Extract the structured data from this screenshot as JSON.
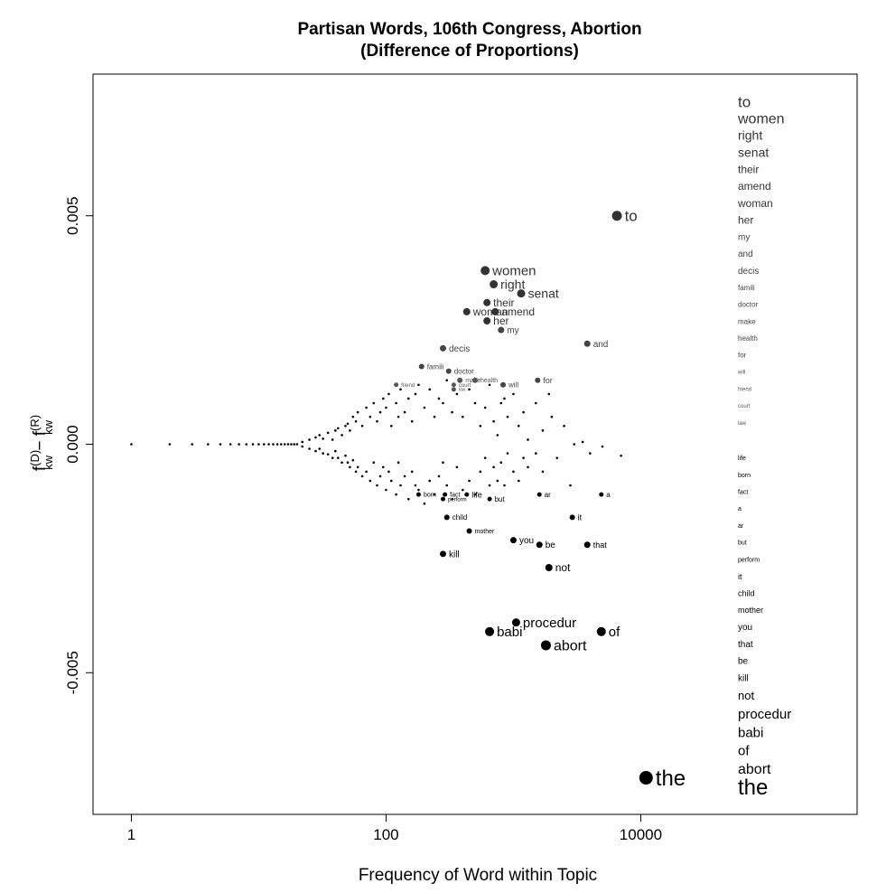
{
  "chart_data": {
    "type": "scatter",
    "title": "Partisan Words, 106th Congress, Abortion",
    "subtitle": "(Difference of Proportions)",
    "xlabel": "Frequency of Word within Topic",
    "ylabel": {
      "base": "f",
      "sup1": "(D)",
      "sub": "kw",
      "minus": " − ",
      "sup2": "(R)"
    },
    "x_scale": "log",
    "x_ticks": [
      {
        "value": 1,
        "label": "1"
      },
      {
        "value": 100,
        "label": "100"
      },
      {
        "value": 10000,
        "label": "10000"
      }
    ],
    "y_ticks": [
      {
        "value": -0.005,
        "label": "-0.005"
      },
      {
        "value": 0,
        "label": "0.000"
      },
      {
        "value": 0.005,
        "label": "0.005"
      }
    ],
    "xlim": [
      0.5,
      500000
    ],
    "ylim": [
      -0.0081,
      0.0081
    ],
    "grid": false,
    "labeled_points": [
      {
        "word": "to",
        "x": 6500,
        "y": 0.005,
        "size": 5.5,
        "fs": 17,
        "color": "#333333"
      },
      {
        "word": "women",
        "x": 600,
        "y": 0.0038,
        "size": 5,
        "fs": 15,
        "color": "#333333"
      },
      {
        "word": "right",
        "x": 700,
        "y": 0.0035,
        "size": 4.5,
        "fs": 14,
        "color": "#333333"
      },
      {
        "word": "senat",
        "x": 1150,
        "y": 0.0033,
        "size": 4.5,
        "fs": 14,
        "color": "#333333"
      },
      {
        "word": "their",
        "x": 620,
        "y": 0.0031,
        "size": 4,
        "fs": 12,
        "color": "#333333"
      },
      {
        "word": "woman",
        "x": 430,
        "y": 0.0029,
        "size": 4,
        "fs": 12,
        "color": "#333333"
      },
      {
        "word": "amend",
        "x": 720,
        "y": 0.0029,
        "size": 4,
        "fs": 12,
        "color": "#333333"
      },
      {
        "word": "her",
        "x": 620,
        "y": 0.0027,
        "size": 4,
        "fs": 12,
        "color": "#333333"
      },
      {
        "word": "my",
        "x": 800,
        "y": 0.0025,
        "size": 3.5,
        "fs": 10,
        "color": "#444444"
      },
      {
        "word": "and",
        "x": 3800,
        "y": 0.0022,
        "size": 3.5,
        "fs": 10,
        "color": "#444444"
      },
      {
        "word": "decis",
        "x": 280,
        "y": 0.0021,
        "size": 3.5,
        "fs": 10,
        "color": "#444444"
      },
      {
        "word": "famili",
        "x": 190,
        "y": 0.0017,
        "size": 3,
        "fs": 8,
        "color": "#444444"
      },
      {
        "word": "doctor",
        "x": 310,
        "y": 0.0016,
        "size": 3,
        "fs": 8,
        "color": "#444444"
      },
      {
        "word": "make",
        "x": 380,
        "y": 0.0014,
        "size": 3,
        "fs": 7,
        "color": "#555555"
      },
      {
        "word": "health",
        "x": 500,
        "y": 0.0014,
        "size": 3,
        "fs": 7,
        "color": "#555555"
      },
      {
        "word": "for",
        "x": 1550,
        "y": 0.0014,
        "size": 3,
        "fs": 9,
        "color": "#444444"
      },
      {
        "word": "will",
        "x": 830,
        "y": 0.0013,
        "size": 3,
        "fs": 8,
        "color": "#444444"
      },
      {
        "word": "friend",
        "x": 120,
        "y": 0.0013,
        "size": 2.5,
        "fs": 6,
        "color": "#555555"
      },
      {
        "word": "court",
        "x": 340,
        "y": 0.0013,
        "size": 2.5,
        "fs": 6,
        "color": "#555555"
      },
      {
        "word": "law",
        "x": 340,
        "y": 0.0012,
        "size": 2.5,
        "fs": 5,
        "color": "#555555"
      },
      {
        "word": "life",
        "x": 430,
        "y": -0.0011,
        "size": 2.5,
        "fs": 9,
        "color": "#000000"
      },
      {
        "word": "born",
        "x": 180,
        "y": -0.0011,
        "size": 2.5,
        "fs": 7,
        "color": "#000000"
      },
      {
        "word": "fact",
        "x": 290,
        "y": -0.0011,
        "size": 2.5,
        "fs": 7,
        "color": "#000000"
      },
      {
        "word": "a",
        "x": 4900,
        "y": -0.0011,
        "size": 2.5,
        "fs": 8,
        "color": "#000000"
      },
      {
        "word": "ar",
        "x": 1600,
        "y": -0.0011,
        "size": 2.5,
        "fs": 8,
        "color": "#000000"
      },
      {
        "word": "but",
        "x": 650,
        "y": -0.0012,
        "size": 2.5,
        "fs": 8,
        "color": "#000000"
      },
      {
        "word": "perform",
        "x": 280,
        "y": -0.0012,
        "size": 2.5,
        "fs": 6,
        "color": "#000000"
      },
      {
        "word": "it",
        "x": 2900,
        "y": -0.0016,
        "size": 3,
        "fs": 9,
        "color": "#000000"
      },
      {
        "word": "child",
        "x": 300,
        "y": -0.0016,
        "size": 3,
        "fs": 8,
        "color": "#000000"
      },
      {
        "word": "mother",
        "x": 450,
        "y": -0.0019,
        "size": 3,
        "fs": 7,
        "color": "#000000"
      },
      {
        "word": "you",
        "x": 1000,
        "y": -0.0021,
        "size": 3.5,
        "fs": 10,
        "color": "#000000"
      },
      {
        "word": "that",
        "x": 3800,
        "y": -0.0022,
        "size": 3.5,
        "fs": 9,
        "color": "#000000"
      },
      {
        "word": "be",
        "x": 1600,
        "y": -0.0022,
        "size": 3.5,
        "fs": 10,
        "color": "#000000"
      },
      {
        "word": "kill",
        "x": 280,
        "y": -0.0024,
        "size": 3.5,
        "fs": 10,
        "color": "#000000"
      },
      {
        "word": "not",
        "x": 1900,
        "y": -0.0027,
        "size": 4,
        "fs": 12,
        "color": "#000000"
      },
      {
        "word": "procedur",
        "x": 1050,
        "y": -0.0039,
        "size": 4.5,
        "fs": 15,
        "color": "#000000"
      },
      {
        "word": "babi",
        "x": 650,
        "y": -0.0041,
        "size": 5,
        "fs": 15,
        "color": "#000000"
      },
      {
        "word": "of",
        "x": 4900,
        "y": -0.0041,
        "size": 5,
        "fs": 15,
        "color": "#000000"
      },
      {
        "word": "abort",
        "x": 1800,
        "y": -0.0044,
        "size": 5.5,
        "fs": 16,
        "color": "#000000"
      },
      {
        "word": "the",
        "x": 11000,
        "y": -0.0073,
        "size": 7.5,
        "fs": 24,
        "color": "#000000"
      }
    ],
    "side_list": [
      {
        "word": "to",
        "fs": 17,
        "color": "#333333",
        "y": 0.0075
      },
      {
        "word": "women",
        "fs": 16,
        "color": "#333333",
        "y": 0.00713
      },
      {
        "word": "right",
        "fs": 14,
        "color": "#333333",
        "y": 0.00676
      },
      {
        "word": "senat",
        "fs": 14,
        "color": "#333333",
        "y": 0.00639
      },
      {
        "word": "their",
        "fs": 12,
        "color": "#333333",
        "y": 0.00602
      },
      {
        "word": "amend",
        "fs": 12,
        "color": "#333333",
        "y": 0.00565
      },
      {
        "word": "woman",
        "fs": 12,
        "color": "#333333",
        "y": 0.00528
      },
      {
        "word": "her",
        "fs": 12,
        "color": "#333333",
        "y": 0.00491
      },
      {
        "word": "my",
        "fs": 10,
        "color": "#444444",
        "y": 0.00454
      },
      {
        "word": "and",
        "fs": 10,
        "color": "#444444",
        "y": 0.00417
      },
      {
        "word": "decis",
        "fs": 10,
        "color": "#444444",
        "y": 0.0038
      },
      {
        "word": "famili",
        "fs": 8,
        "color": "#444444",
        "y": 0.00343
      },
      {
        "word": "doctor",
        "fs": 8,
        "color": "#444444",
        "y": 0.00306
      },
      {
        "word": "make",
        "fs": 8,
        "color": "#444444",
        "y": 0.00269
      },
      {
        "word": "health",
        "fs": 8,
        "color": "#444444",
        "y": 0.00232
      },
      {
        "word": "for",
        "fs": 8,
        "color": "#444444",
        "y": 0.00195
      },
      {
        "word": "will",
        "fs": 6,
        "color": "#555555",
        "y": 0.00158
      },
      {
        "word": "friend",
        "fs": 6,
        "color": "#555555",
        "y": 0.00121
      },
      {
        "word": "court",
        "fs": 6,
        "color": "#555555",
        "y": 0.00084
      },
      {
        "word": "law",
        "fs": 6,
        "color": "#555555",
        "y": 0.00047
      },
      {
        "word": "life",
        "fs": 7,
        "color": "#000000",
        "y": -0.0003
      },
      {
        "word": "born",
        "fs": 7,
        "color": "#000000",
        "y": -0.00067
      },
      {
        "word": "fact",
        "fs": 7,
        "color": "#000000",
        "y": -0.00104
      },
      {
        "word": "a",
        "fs": 7,
        "color": "#000000",
        "y": -0.00141
      },
      {
        "word": "ar",
        "fs": 7,
        "color": "#000000",
        "y": -0.00178
      },
      {
        "word": "but",
        "fs": 7,
        "color": "#000000",
        "y": -0.00215
      },
      {
        "word": "perform",
        "fs": 7,
        "color": "#000000",
        "y": -0.00252
      },
      {
        "word": "it",
        "fs": 9,
        "color": "#000000",
        "y": -0.00289
      },
      {
        "word": "child",
        "fs": 9,
        "color": "#000000",
        "y": -0.00326
      },
      {
        "word": "mother",
        "fs": 9,
        "color": "#000000",
        "y": -0.00363
      },
      {
        "word": "you",
        "fs": 10,
        "color": "#000000",
        "y": -0.004
      },
      {
        "word": "that",
        "fs": 10,
        "color": "#000000",
        "y": -0.00437
      },
      {
        "word": "be",
        "fs": 10,
        "color": "#000000",
        "y": -0.00474
      },
      {
        "word": "kill",
        "fs": 10,
        "color": "#000000",
        "y": -0.00511
      },
      {
        "word": "not",
        "fs": 13,
        "color": "#000000",
        "y": -0.0055
      },
      {
        "word": "procedur",
        "fs": 15,
        "color": "#000000",
        "y": -0.0059
      },
      {
        "word": "babi",
        "fs": 15,
        "color": "#000000",
        "y": -0.0063
      },
      {
        "word": "of",
        "fs": 15,
        "color": "#000000",
        "y": -0.0067
      },
      {
        "word": "abort",
        "fs": 16,
        "color": "#000000",
        "y": -0.0071
      },
      {
        "word": "the",
        "fs": 24,
        "color": "#000000",
        "y": -0.0075
      }
    ],
    "unlabeled_points": [
      [
        1,
        0
      ],
      [
        2,
        0
      ],
      [
        3,
        0
      ],
      [
        4,
        0
      ],
      [
        5,
        0
      ],
      [
        6,
        0
      ],
      [
        7,
        0
      ],
      [
        8,
        0
      ],
      [
        9,
        0
      ],
      [
        10,
        0
      ],
      [
        11,
        0
      ],
      [
        12,
        0
      ],
      [
        13,
        0
      ],
      [
        14,
        0
      ],
      [
        15,
        0
      ],
      [
        16,
        0
      ],
      [
        17,
        0
      ],
      [
        18,
        0
      ],
      [
        19,
        0
      ],
      [
        20,
        0
      ],
      [
        22,
        5e-05
      ],
      [
        22,
        -5e-05
      ],
      [
        25,
        0.0001
      ],
      [
        25,
        -0.0001
      ],
      [
        28,
        0.00015
      ],
      [
        28,
        -0.00015
      ],
      [
        30,
        0.0002
      ],
      [
        30,
        -0.0001
      ],
      [
        32,
        0.00012
      ],
      [
        32,
        -0.0002
      ],
      [
        35,
        0.00025
      ],
      [
        35,
        -0.00022
      ],
      [
        38,
        0.0001
      ],
      [
        38,
        -0.0003
      ],
      [
        40,
        0.0003
      ],
      [
        40,
        -0.00015
      ],
      [
        42,
        0.00035
      ],
      [
        42,
        -0.0003
      ],
      [
        45,
        0.0002
      ],
      [
        45,
        -0.0004
      ],
      [
        48,
        0.0004
      ],
      [
        48,
        -0.00025
      ],
      [
        50,
        0.00045
      ],
      [
        50,
        -0.0004
      ],
      [
        52,
        0.0003
      ],
      [
        52,
        -0.0005
      ],
      [
        55,
        0.0006
      ],
      [
        55,
        -0.00035
      ],
      [
        58,
        0.0005
      ],
      [
        58,
        -0.0006
      ],
      [
        60,
        0.0007
      ],
      [
        60,
        -0.0005
      ],
      [
        65,
        0.0004
      ],
      [
        65,
        -0.0007
      ],
      [
        70,
        0.0008
      ],
      [
        70,
        -0.0006
      ],
      [
        75,
        0.0006
      ],
      [
        75,
        -0.0008
      ],
      [
        80,
        0.0009
      ],
      [
        80,
        -0.0004
      ],
      [
        85,
        0.0005
      ],
      [
        85,
        -0.0009
      ],
      [
        90,
        0.0007
      ],
      [
        90,
        -0.0007
      ],
      [
        95,
        0.001
      ],
      [
        95,
        -0.0005
      ],
      [
        100,
        0.0008
      ],
      [
        100,
        -0.001
      ],
      [
        105,
        0.0011
      ],
      [
        105,
        -0.0006
      ],
      [
        110,
        0.0004
      ],
      [
        110,
        -0.0008
      ],
      [
        120,
        0.0009
      ],
      [
        120,
        -0.0011
      ],
      [
        125,
        0.0006
      ],
      [
        125,
        -0.0004
      ],
      [
        130,
        0.0012
      ],
      [
        130,
        -0.0009
      ],
      [
        140,
        0.0007
      ],
      [
        140,
        -0.0007
      ],
      [
        150,
        0.001
      ],
      [
        150,
        -0.0012
      ],
      [
        160,
        0.0005
      ],
      [
        160,
        -0.0006
      ],
      [
        170,
        0.0011
      ],
      [
        170,
        -0.0009
      ],
      [
        180,
        0.0013
      ],
      [
        180,
        -0.001
      ],
      [
        200,
        0.0008
      ],
      [
        200,
        -0.0013
      ],
      [
        220,
        0.0012
      ],
      [
        220,
        -0.0008
      ],
      [
        240,
        0.0006
      ],
      [
        240,
        -0.0011
      ],
      [
        260,
        0.001
      ],
      [
        260,
        -0.0007
      ],
      [
        280,
        0.0009
      ],
      [
        280,
        -0.0004
      ],
      [
        300,
        0.0014
      ],
      [
        300,
        -0.0009
      ],
      [
        330,
        0.0007
      ],
      [
        330,
        -0.0012
      ],
      [
        360,
        0.0011
      ],
      [
        360,
        -0.0005
      ],
      [
        400,
        0.0006
      ],
      [
        400,
        -0.001
      ],
      [
        450,
        0.0012
      ],
      [
        450,
        -0.0008
      ],
      [
        500,
        0.0009
      ],
      [
        500,
        -0.0011
      ],
      [
        550,
        0.0004
      ],
      [
        550,
        -0.0006
      ],
      [
        600,
        0.0008
      ],
      [
        600,
        -0.0003
      ],
      [
        650,
        0.0013
      ],
      [
        650,
        -0.0009
      ],
      [
        700,
        0.0005
      ],
      [
        700,
        -0.0005
      ],
      [
        750,
        0.0002
      ],
      [
        750,
        -0.0008
      ],
      [
        800,
        0.0009
      ],
      [
        800,
        -0.0004
      ],
      [
        850,
        0.001
      ],
      [
        850,
        -0.0009
      ],
      [
        900,
        0.0006
      ],
      [
        900,
        -0.0002
      ],
      [
        1000,
        0.0011
      ],
      [
        1000,
        -0.0006
      ],
      [
        1100,
        0.0004
      ],
      [
        1100,
        -0.0008
      ],
      [
        1200,
        0.0007
      ],
      [
        1200,
        -0.0003
      ],
      [
        1300,
        0.0001
      ],
      [
        1300,
        -0.0005
      ],
      [
        1500,
        0.0009
      ],
      [
        1500,
        -0.0002
      ],
      [
        1700,
        0.0003
      ],
      [
        1700,
        -0.0006
      ],
      [
        1900,
        0.0011
      ],
      [
        2000,
        0.0006
      ],
      [
        2200,
        -0.0003
      ],
      [
        2500,
        0.0004
      ],
      [
        2800,
        -0.0009
      ],
      [
        3000,
        0.0
      ],
      [
        3500,
        5e-05
      ],
      [
        4000,
        -0.0002
      ],
      [
        5000,
        -5e-05
      ],
      [
        7000,
        -0.00025
      ]
    ]
  }
}
